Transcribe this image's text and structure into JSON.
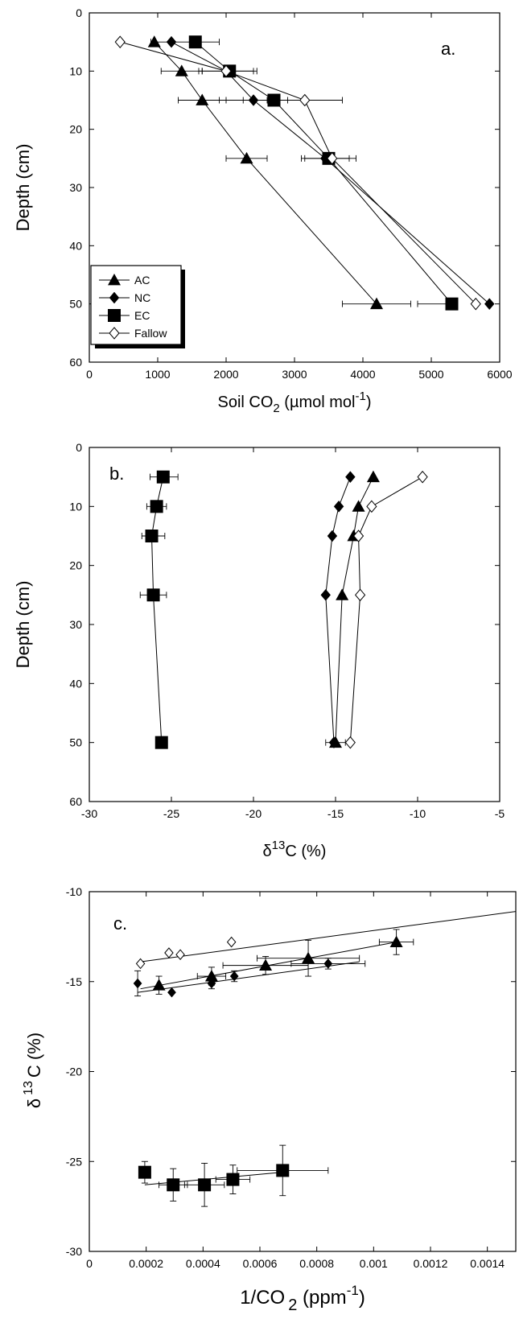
{
  "chart_data": [
    {
      "type": "line",
      "panel": "a.",
      "xlabel": "Soil CO",
      "xlabel_sub": "2",
      "xlabel_unit": " (µmol mol",
      "xlabel_sup": "-1",
      "xlabel_close": ")",
      "ylabel": "Depth  (cm)",
      "xlim": [
        0,
        6000
      ],
      "ylim": [
        0,
        60
      ],
      "x_ticks": [
        0,
        1000,
        2000,
        3000,
        4000,
        5000,
        6000
      ],
      "y_ticks": [
        0,
        10,
        20,
        30,
        40,
        50,
        60
      ],
      "y_reversed": true,
      "legend_position": "bottom-left",
      "series": [
        {
          "name": "AC",
          "marker": "triangle-filled",
          "points": [
            {
              "x": 950,
              "y": 5
            },
            {
              "x": 1350,
              "y": 10
            },
            {
              "x": 1650,
              "y": 15
            },
            {
              "x": 2300,
              "y": 25
            },
            {
              "x": 4200,
              "y": 50
            }
          ],
          "xerr": [
            [
              0,
              0
            ],
            [
              300,
              300
            ],
            [
              350,
              350
            ],
            [
              300,
              300
            ],
            [
              500,
              500
            ]
          ]
        },
        {
          "name": "NC",
          "marker": "diamond-filled",
          "points": [
            {
              "x": 1200,
              "y": 5
            },
            {
              "x": 2000,
              "y": 10
            },
            {
              "x": 2400,
              "y": 15
            },
            {
              "x": 3450,
              "y": 25
            },
            {
              "x": 5850,
              "y": 50
            }
          ],
          "xerr": [
            [
              0,
              0
            ],
            [
              400,
              400
            ],
            [
              500,
              500
            ],
            [
              350,
              350
            ],
            [
              0,
              0
            ]
          ]
        },
        {
          "name": "EC",
          "marker": "square-filled",
          "points": [
            {
              "x": 1550,
              "y": 5
            },
            {
              "x": 2050,
              "y": 10
            },
            {
              "x": 2700,
              "y": 15
            },
            {
              "x": 3500,
              "y": 25
            },
            {
              "x": 5300,
              "y": 50
            }
          ],
          "xerr": [
            [
              650,
              350
            ],
            [
              400,
              400
            ],
            [
              450,
              0
            ],
            [
              350,
              400
            ],
            [
              500,
              0
            ]
          ]
        },
        {
          "name": "Fallow",
          "marker": "diamond-open",
          "points": [
            {
              "x": 450,
              "y": 5
            },
            {
              "x": 2000,
              "y": 10
            },
            {
              "x": 3150,
              "y": 15
            },
            {
              "x": 3550,
              "y": 25
            },
            {
              "x": 5650,
              "y": 50
            }
          ],
          "xerr": [
            [
              0,
              0
            ],
            [
              0,
              0
            ],
            [
              550,
              550
            ],
            [
              0,
              0
            ],
            [
              0,
              0
            ]
          ]
        }
      ]
    },
    {
      "type": "line",
      "panel": "b.",
      "xlabel": "δ",
      "xlabel_sup": "13",
      "xlabel_unit": "C (%)",
      "ylabel": "Depth  (cm)",
      "xlim": [
        -30,
        -5
      ],
      "ylim": [
        0,
        60
      ],
      "x_ticks": [
        -30,
        -25,
        -20,
        -15,
        -10,
        -5
      ],
      "y_ticks": [
        0,
        10,
        20,
        30,
        40,
        50,
        60
      ],
      "y_reversed": true,
      "series": [
        {
          "name": "AC",
          "marker": "triangle-filled",
          "points": [
            {
              "x": -12.7,
              "y": 5
            },
            {
              "x": -13.6,
              "y": 10
            },
            {
              "x": -13.9,
              "y": 15
            },
            {
              "x": -14.6,
              "y": 25
            },
            {
              "x": -15.0,
              "y": 50
            }
          ],
          "xerr": [
            [
              0,
              0
            ],
            [
              0,
              0
            ],
            [
              0,
              0
            ],
            [
              0,
              0
            ],
            [
              0.6,
              0.6
            ]
          ]
        },
        {
          "name": "NC",
          "marker": "diamond-filled",
          "points": [
            {
              "x": -14.1,
              "y": 5
            },
            {
              "x": -14.8,
              "y": 10
            },
            {
              "x": -15.2,
              "y": 15
            },
            {
              "x": -15.6,
              "y": 25
            },
            {
              "x": -15.1,
              "y": 50
            }
          ],
          "xerr": [
            [
              0,
              0
            ],
            [
              0,
              0
            ],
            [
              0,
              0
            ],
            [
              0,
              0
            ],
            [
              0,
              0
            ]
          ]
        },
        {
          "name": "EC",
          "marker": "square-filled",
          "points": [
            {
              "x": -25.5,
              "y": 5
            },
            {
              "x": -25.9,
              "y": 10
            },
            {
              "x": -26.2,
              "y": 15
            },
            {
              "x": -26.1,
              "y": 25
            },
            {
              "x": -25.6,
              "y": 50
            }
          ],
          "xerr": [
            [
              0.8,
              0.9
            ],
            [
              0.6,
              0.6
            ],
            [
              0.6,
              0.8
            ],
            [
              0.8,
              0.8
            ],
            [
              0,
              0
            ]
          ]
        },
        {
          "name": "Fallow",
          "marker": "diamond-open",
          "points": [
            {
              "x": -9.7,
              "y": 5
            },
            {
              "x": -12.8,
              "y": 10
            },
            {
              "x": -13.6,
              "y": 15
            },
            {
              "x": -13.5,
              "y": 25
            },
            {
              "x": -14.1,
              "y": 50
            }
          ],
          "xerr": [
            [
              0,
              0
            ],
            [
              0,
              0
            ],
            [
              0,
              0
            ],
            [
              0,
              0
            ],
            [
              0,
              0
            ]
          ]
        }
      ]
    },
    {
      "type": "scatter",
      "panel": "c.",
      "xlabel": "1/CO",
      "xlabel_sub": "2",
      "xlabel_unit": " (ppm",
      "xlabel_sup": "-1",
      "xlabel_close": ")",
      "ylabel": "δ",
      "ylabel_sup": "13",
      "ylabel_unit": "C (%)",
      "xlim": [
        0,
        0.0015
      ],
      "ylim": [
        -30,
        -10
      ],
      "x_ticks": [
        0,
        0.0002,
        0.0004,
        0.0006,
        0.0008,
        0.001,
        0.0012,
        0.0014
      ],
      "x_tick_labels": [
        "0",
        "0.0002",
        "0.0004",
        "0.0006",
        "0.0008",
        "0.001",
        "0.0012",
        "0.0014"
      ],
      "y_ticks": [
        -30,
        -25,
        -20,
        -15,
        -10
      ],
      "series": [
        {
          "name": "AC",
          "marker": "triangle-filled",
          "points": [
            {
              "x": 0.000245,
              "y": -15.2
            },
            {
              "x": 0.00043,
              "y": -14.7
            },
            {
              "x": 0.00062,
              "y": -14.1
            },
            {
              "x": 0.00077,
              "y": -13.7
            },
            {
              "x": 0.00108,
              "y": -12.8
            }
          ],
          "xerr": [
            0,
            5e-05,
            0.00015,
            0.00018,
            6e-05
          ],
          "yerr": [
            0.5,
            0.5,
            0.5,
            1,
            0.7
          ],
          "fit": [
            {
              "x": 0.00018,
              "y": -15.4
            },
            {
              "x": 0.00108,
              "y": -12.8
            }
          ]
        },
        {
          "name": "NC",
          "marker": "diamond-filled",
          "points": [
            {
              "x": 0.00017,
              "y": -15.1
            },
            {
              "x": 0.00029,
              "y": -15.6
            },
            {
              "x": 0.00043,
              "y": -15.1
            },
            {
              "x": 0.00051,
              "y": -14.7
            },
            {
              "x": 0.00084,
              "y": -14.0
            }
          ],
          "xerr": [
            0,
            0,
            0,
            0,
            0.00013
          ],
          "yerr": [
            0.7,
            0,
            0.3,
            0.3,
            0.3
          ],
          "fit": [
            {
              "x": 0.00017,
              "y": -15.6
            },
            {
              "x": 0.00095,
              "y": -13.9
            }
          ]
        },
        {
          "name": "EC",
          "marker": "square-filled",
          "points": [
            {
              "x": 0.000195,
              "y": -25.6
            },
            {
              "x": 0.000295,
              "y": -26.3
            },
            {
              "x": 0.000405,
              "y": -26.3
            },
            {
              "x": 0.000505,
              "y": -26.0
            },
            {
              "x": 0.00068,
              "y": -25.5
            }
          ],
          "xerr": [
            0,
            5e-05,
            7e-05,
            6e-05,
            0.00016
          ],
          "yerr": [
            0.6,
            0.9,
            1.2,
            0.8,
            1.4
          ],
          "fit": [
            {
              "x": 0.000195,
              "y": -26.3
            },
            {
              "x": 0.00068,
              "y": -25.6
            }
          ]
        },
        {
          "name": "Fallow",
          "marker": "diamond-open",
          "points": [
            {
              "x": 0.00018,
              "y": -14.0
            },
            {
              "x": 0.00028,
              "y": -13.4
            },
            {
              "x": 0.00032,
              "y": -13.5
            },
            {
              "x": 0.0005,
              "y": -12.8
            }
          ],
          "xerr": [
            0,
            0,
            0,
            0
          ],
          "yerr": [
            0,
            0,
            0,
            0
          ],
          "fit": [
            {
              "x": 0.00018,
              "y": -13.9
            },
            {
              "x": 0.0015,
              "y": -11.1
            }
          ]
        }
      ]
    }
  ]
}
